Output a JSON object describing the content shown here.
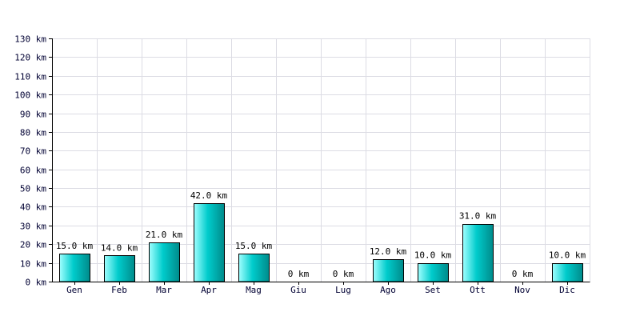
{
  "chart_data": {
    "type": "bar",
    "title": "",
    "xlabel": "",
    "ylabel": "",
    "unit": "km",
    "categories": [
      "Gen",
      "Feb",
      "Mar",
      "Apr",
      "Mag",
      "Giu",
      "Lug",
      "Ago",
      "Set",
      "Ott",
      "Nov",
      "Dic"
    ],
    "values": [
      15.0,
      14.0,
      21.0,
      42.0,
      15.0,
      0,
      0,
      12.0,
      10.0,
      31.0,
      0,
      10.0
    ],
    "value_labels": [
      "15.0 km",
      "14.0 km",
      "21.0 km",
      "42.0 km",
      "15.0 km",
      "0 km",
      "0 km",
      "12.0 km",
      "10.0 km",
      "31.0 km",
      "0 km",
      "10.0 km"
    ],
    "ylim": [
      0,
      130
    ],
    "y_ticks": [
      0,
      10,
      20,
      30,
      40,
      50,
      60,
      70,
      80,
      90,
      100,
      110,
      120,
      130
    ],
    "y_tick_labels": [
      "0 km",
      "10 km",
      "20 km",
      "30 km",
      "40 km",
      "50 km",
      "60 km",
      "70 km",
      "80 km",
      "90 km",
      "100 km",
      "110 km",
      "120 km",
      "130 km"
    ],
    "grid": true,
    "legend": "none",
    "colors": {
      "bar_light": "#a0ffff",
      "bar_main": "#00cccc",
      "bar_dark": "#008a8a",
      "grid": "#dcdce4",
      "tick_text": "#000033"
    }
  }
}
